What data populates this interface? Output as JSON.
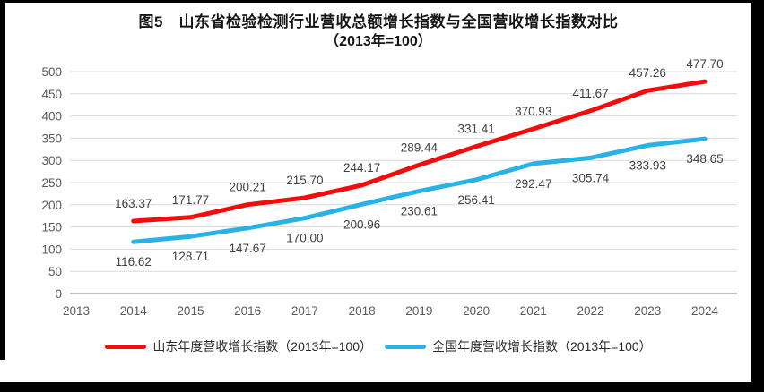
{
  "chart_data": {
    "type": "line",
    "title": "图5　山东省检验检测行业营收总额增长指数与全国营收增长指数对比",
    "subtitle": "（2013年=100）",
    "x_categories": [
      "2013",
      "2014",
      "2015",
      "2016",
      "2017",
      "2018",
      "2019",
      "2020",
      "2021",
      "2022",
      "2023",
      "2024"
    ],
    "ylim": [
      0,
      500
    ],
    "ytick_step": 50,
    "grid": true,
    "legend_position": "bottom",
    "colors": {
      "gridline": "#d9d9d9",
      "axis_line": "#bfbfbf",
      "tick_label": "#595959",
      "data_label": "#404040",
      "frame_background": "#000000",
      "page_background": "#ffffff"
    },
    "series": [
      {
        "name": "山东年度营收增长指数（2013年=100）",
        "color": "#f20d0d",
        "start_category": "2014",
        "values": [
          163.37,
          171.77,
          200.21,
          215.7,
          244.17,
          289.44,
          331.41,
          370.93,
          411.67,
          457.26,
          477.7
        ],
        "labels": [
          "163.37",
          "171.77",
          "200.21",
          "215.70",
          "244.17",
          "289.44",
          "331.41",
          "370.93",
          "411.67",
          "457.26",
          "477.70"
        ],
        "label_side": "above"
      },
      {
        "name": "全国年度营收增长指数（2013年=100）",
        "color": "#29b2e5",
        "start_category": "2014",
        "values": [
          116.62,
          128.71,
          147.67,
          170.0,
          200.96,
          230.61,
          256.41,
          292.47,
          305.74,
          333.93,
          348.65
        ],
        "labels": [
          "116.62",
          "128.71",
          "147.67",
          "170.00",
          "200.96",
          "230.61",
          "256.41",
          "292.47",
          "305.74",
          "333.93",
          "348.65"
        ],
        "label_side": "below"
      }
    ]
  }
}
